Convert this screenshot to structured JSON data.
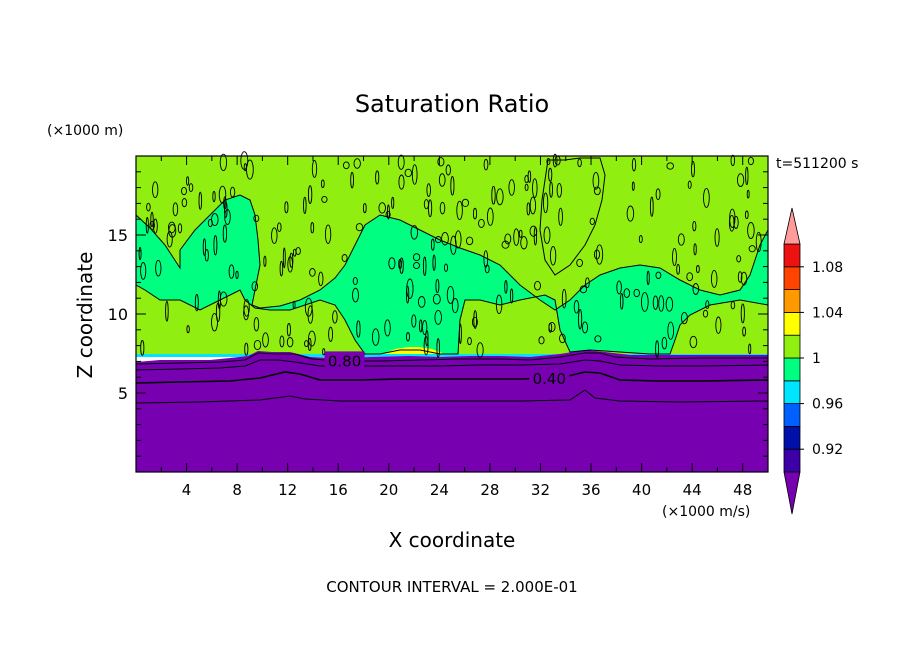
{
  "chart_data": {
    "type": "heatmap",
    "title": "Saturation Ratio",
    "xlabel": "X coordinate",
    "ylabel": "Z coordinate",
    "x_unit": "(×1000 m/s)",
    "y_unit": "(×1000 m)",
    "time_label": "t=511200 s",
    "footer": "CONTOUR INTERVAL = 2.000E-01",
    "xlim": [
      0,
      50
    ],
    "ylim": [
      0,
      20
    ],
    "x_ticks": [
      4,
      8,
      12,
      16,
      20,
      24,
      28,
      32,
      36,
      40,
      44,
      48
    ],
    "y_ticks": [
      5,
      10,
      15
    ],
    "contour_labels": [
      {
        "text": "0.80",
        "x": 16.5,
        "z": 7.0
      },
      {
        "text": "0.40",
        "x": 32.7,
        "z": 5.9
      }
    ],
    "colorbar": {
      "labels": [
        {
          "value": 1.08,
          "text": "1.08"
        },
        {
          "value": 1.04,
          "text": "1.04"
        },
        {
          "value": 1.0,
          "text": "1"
        },
        {
          "value": 0.96,
          "text": "0.96"
        },
        {
          "value": 0.92,
          "text": "0.92"
        }
      ],
      "levels": [
        0.9,
        0.92,
        0.94,
        0.96,
        0.98,
        1.0,
        1.02,
        1.04,
        1.06,
        1.08,
        1.1
      ],
      "colors": [
        "#3d00a8",
        "#0010a8",
        "#0060ff",
        "#00e5ff",
        "#00ff80",
        "#90ee10",
        "#ffff00",
        "#ff9900",
        "#ff4400",
        "#ee1111"
      ],
      "under_color": "#7700b0",
      "over_color": "#ff9b9b"
    },
    "regions": {
      "subsaturated_top_km": 7.4,
      "fill_under": "#7700b0",
      "fill_mid": "#00ff80",
      "fill_high": "#90ee10",
      "fill_peak": "#ffff00"
    }
  }
}
